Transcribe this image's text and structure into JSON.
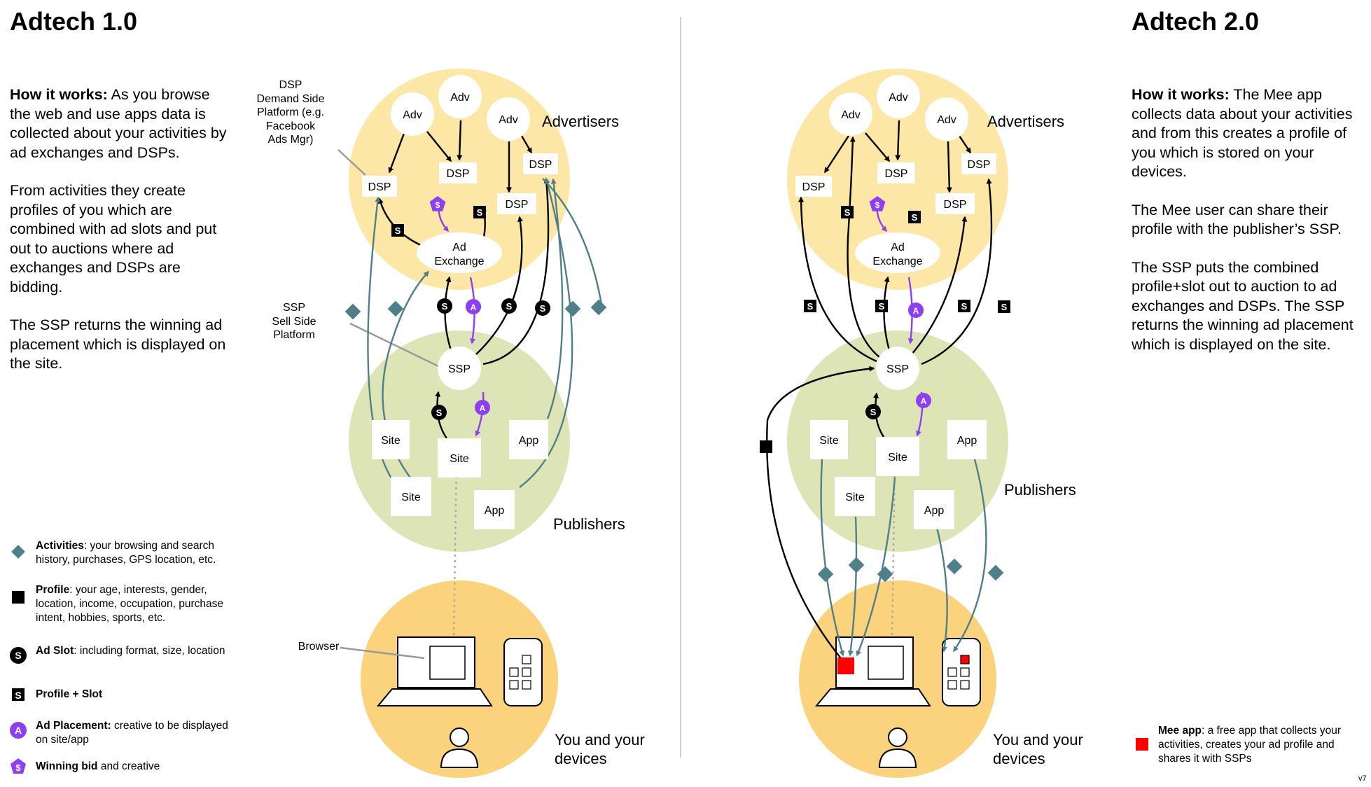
{
  "left": {
    "title": "Adtech 1.0",
    "how_label": "How it works:",
    "how_text": " As you browse the web and use apps data is collected about your activities by ad exchanges and DSPs.",
    "para2": "From activities they create profiles of you which are combined with ad slots and put out to auctions where ad exchanges and DSPs are bidding.",
    "para3": "The SSP returns the winning ad placement which is displayed on the site.",
    "ann_dsp": [
      "DSP",
      "Demand Side",
      "Platform (e.g.",
      "Facebook",
      "Ads Mgr)"
    ],
    "ann_ssp": [
      "SSP",
      "Sell Side",
      "Platform"
    ],
    "ann_browser": "Browser"
  },
  "right": {
    "title": "Adtech 2.0",
    "how_label": "How it works:",
    "how_text": " The Mee app collects data about your activities and from this creates a profile of you which is stored on your devices.",
    "para2": "The Mee  user can share their profile with the publisher’s SSP.",
    "para3": "The SSP puts the combined profile+slot out to auction to ad exchanges and DSPs. The SSP returns the winning ad placement which is displayed on the site."
  },
  "diagram": {
    "adv": "Adv",
    "dsp": "DSP",
    "ad_exchange": [
      "Ad",
      "Exchange"
    ],
    "ssp": "SSP",
    "site": "Site",
    "app": "App",
    "advertisers": "Advertisers",
    "publishers": "Publishers",
    "you": [
      "You and your",
      "devices"
    ],
    "badge_s": "S",
    "badge_a": "A",
    "badge_dollar": "$"
  },
  "legend": [
    {
      "icon": "activities-icon",
      "bold": "Activities",
      "text": ": your browsing and search history, purchases, GPS location, etc."
    },
    {
      "icon": "profile-icon",
      "bold": "Profile",
      "text": ": your age, interests, gender, location, income, occupation, purchase intent, hobbies, sports, etc."
    },
    {
      "icon": "ad-slot-icon",
      "bold": "Ad Slot",
      "text": ": including format, size, location"
    },
    {
      "icon": "profile-slot-icon",
      "bold": "Profile + Slot",
      "text": ""
    },
    {
      "icon": "ad-placement-icon",
      "bold": "Ad Placement:",
      "text": " creative to be displayed on site/app"
    },
    {
      "icon": "winning-bid-icon",
      "bold": "Winning bid",
      "text": " and creative"
    }
  ],
  "mee_legend": {
    "bold": "Mee app",
    "text": ": a free app that collects your activities, creates your ad profile and shares it with SSPs"
  },
  "version": "v7",
  "colors": {
    "advertisers": "#fde7a6",
    "publishers": "#dde5b6",
    "devices": "#fcd37d",
    "teal": "#4f7f88",
    "purple": "#8e3ff0",
    "mee": "#ff0000"
  }
}
